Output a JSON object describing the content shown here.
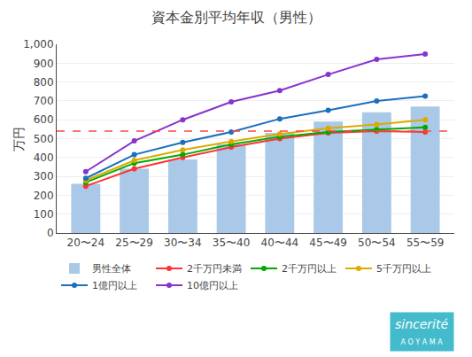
{
  "chart_data": {
    "type": "bar",
    "title": "資本金別平均年収（男性）",
    "ylabel": "万円",
    "categories": [
      "20〜24",
      "25〜29",
      "30〜34",
      "35〜40",
      "40〜44",
      "45〜49",
      "50〜54",
      "55〜59"
    ],
    "series": [
      {
        "name": "男性全体",
        "type": "bar",
        "color": "#aac8e8",
        "values": [
          260,
          340,
          390,
          470,
          530,
          590,
          640,
          670
        ]
      },
      {
        "name": "2千万円未満",
        "type": "line",
        "color": "#ff3333",
        "marker": "circle",
        "values": [
          248,
          340,
          400,
          455,
          500,
          530,
          540,
          535
        ]
      },
      {
        "name": "2千万円以上",
        "type": "line",
        "color": "#00aa00",
        "marker": "circle",
        "values": [
          268,
          370,
          415,
          470,
          510,
          535,
          548,
          560
        ]
      },
      {
        "name": "5千万円以上",
        "type": "line",
        "color": "#ddaa00",
        "marker": "circle",
        "values": [
          278,
          385,
          440,
          485,
          525,
          555,
          575,
          600
        ]
      },
      {
        "name": "1億円以上",
        "type": "line",
        "color": "#1a6fbe",
        "marker": "circle",
        "values": [
          290,
          415,
          480,
          535,
          605,
          650,
          700,
          725
        ]
      },
      {
        "name": "10億円以上",
        "type": "line",
        "color": "#8833cc",
        "marker": "circle",
        "values": [
          325,
          488,
          600,
          695,
          755,
          840,
          920,
          948
        ]
      }
    ],
    "hline": {
      "y": 540,
      "color": "#ff4444",
      "line_style": "dashed"
    },
    "ylim": [
      0,
      1000
    ],
    "yticks": [
      0,
      100,
      200,
      300,
      400,
      500,
      600,
      700,
      800,
      900,
      {
        "value": 1000,
        "label": "1,000"
      }
    ],
    "grid": true,
    "legend": "bottom",
    "annotations": [
      {
        "text": "sincerité",
        "color": "#44bbcc"
      },
      {
        "text": "A O Y A M A",
        "color": "#44bbcc"
      }
    ]
  }
}
